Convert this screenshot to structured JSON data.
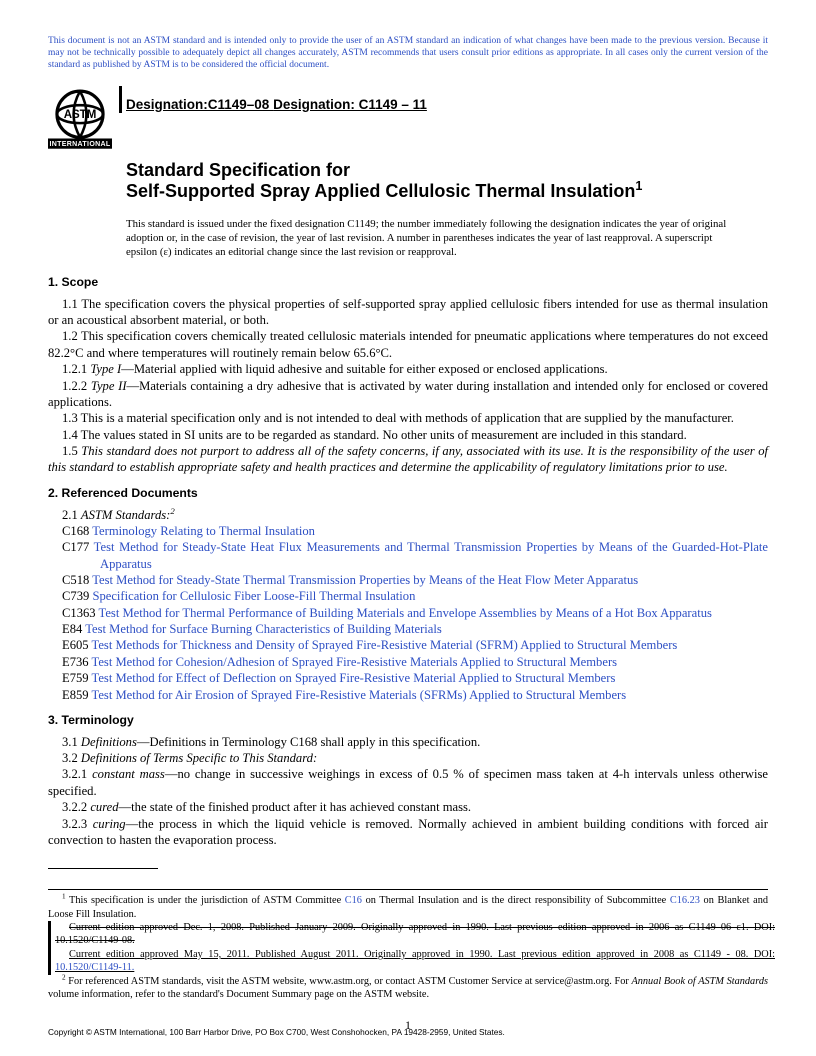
{
  "notice": "This document is not an ASTM standard and is intended only to provide the user of an ASTM standard an indication of what changes have been made to the previous version. Because it may not be technically possible to adequately depict all changes accurately, ASTM recommends that users consult prior editions as appropriate. In all cases only the current version of the standard as published by ASTM is to be considered the official document.",
  "logo_text_top": "INTERNATIONAL",
  "designation_old": "Designation:C1149–08 ",
  "designation_new": "Designation: C1149 – 11",
  "title_line1": "Standard Specification for",
  "title_line2": "Self-Supported Spray Applied Cellulosic Thermal Insulation",
  "title_super": "1",
  "issue_note": "This standard is issued under the fixed designation C1149; the number immediately following the designation indicates the year of original adoption or, in the case of revision, the year of last revision. A number in parentheses indicates the year of last reapproval. A superscript epsilon (ε) indicates an editorial change since the last revision or reapproval.",
  "sec1_head": "1. Scope",
  "sec1_1": "1.1 The specification covers the physical properties of self-supported spray applied cellulosic fibers intended for use as thermal insulation or an acoustical absorbent material, or both.",
  "sec1_2": "1.2 This specification covers chemically treated cellulosic materials intended for pneumatic applications where temperatures do not exceed 82.2°C and where temperatures will routinely remain below 65.6°C.",
  "sec1_2_1_lead": "1.2.1 ",
  "sec1_2_1_term": "Type I",
  "sec1_2_1_body": "—Material applied with liquid adhesive and suitable for either exposed or enclosed applications.",
  "sec1_2_2_lead": "1.2.2 ",
  "sec1_2_2_term": "Type II",
  "sec1_2_2_body": "—Materials containing a dry adhesive that is activated by water during installation and intended only for enclosed or covered applications.",
  "sec1_3": "1.3 This is a material specification only and is not intended to deal with methods of application that are supplied by the manufacturer.",
  "sec1_4": "1.4 The values stated in SI units are to be regarded as standard. No other units of measurement are included in this standard.",
  "sec1_5_lead": "1.5 ",
  "sec1_5_body": "This standard does not purport to address all of the safety concerns, if any, associated with its use. It is the responsibility of the user of this standard to establish appropriate safety and health practices and determine the applicability of regulatory limitations prior to use.",
  "sec2_head": "2. Referenced Documents",
  "sec2_1_lead": "2.1 ",
  "sec2_1_term": "ASTM Standards:",
  "sec2_1_sup": "2",
  "refs": [
    {
      "code": "C168",
      "title": "Terminology Relating to Thermal Insulation"
    },
    {
      "code": "C177",
      "title": "Test Method for Steady-State Heat Flux Measurements and Thermal Transmission Properties by Means of the Guarded-Hot-Plate Apparatus"
    },
    {
      "code": "C518",
      "title": "Test Method for Steady-State Thermal Transmission Properties by Means of the Heat Flow Meter Apparatus"
    },
    {
      "code": "C739",
      "title": "Specification for Cellulosic Fiber Loose-Fill Thermal Insulation"
    },
    {
      "code": "C1363",
      "title": "Test Method for Thermal Performance of Building Materials and Envelope Assemblies by Means of a Hot Box Apparatus"
    },
    {
      "code": "E84",
      "title": "Test Method for Surface Burning Characteristics of Building Materials"
    },
    {
      "code": "E605",
      "title": "Test Methods for Thickness and Density of Sprayed Fire-Resistive Material (SFRM) Applied to Structural Members"
    },
    {
      "code": "E736",
      "title": "Test Method for Cohesion/Adhesion of Sprayed Fire-Resistive Materials Applied to Structural Members"
    },
    {
      "code": "E759",
      "title": "Test Method for Effect of Deflection on Sprayed Fire-Resistive Material Applied to Structural Members"
    },
    {
      "code": "E859",
      "title": "Test Method for Air Erosion of Sprayed Fire-Resistive Materials (SFRMs) Applied to Structural Members"
    }
  ],
  "sec3_head": "3. Terminology",
  "sec3_1_lead": "3.1 ",
  "sec3_1_term": "Definitions",
  "sec3_1_body": "—Definitions in Terminology C168 shall apply in this specification.",
  "sec3_2_lead": "3.2 ",
  "sec3_2_term": "Definitions of Terms Specific to This Standard:",
  "sec3_2_1_lead": "3.2.1 ",
  "sec3_2_1_term": "constant mass",
  "sec3_2_1_body": "—no change in successive weighings in excess of 0.5 % of specimen mass taken at 4-h intervals unless otherwise specified.",
  "sec3_2_2_lead": "3.2.2 ",
  "sec3_2_2_term": "cured",
  "sec3_2_2_body": "—the state of the finished product after it has achieved constant mass.",
  "sec3_2_3_lead": "3.2.3 ",
  "sec3_2_3_term": "curing",
  "sec3_2_3_body": "—the process in which the liquid vehicle is removed. Normally achieved in ambient building conditions with forced air convection to hasten the evaporation process.",
  "fn1_a": " This specification is under the jurisdiction of ASTM Committee ",
  "fn1_link1": "C16",
  "fn1_b": " on Thermal Insulation and is the direct responsibility of Subcommittee ",
  "fn1_link2": "C16.23",
  "fn1_c": " on Blanket and Loose Fill Insulation.",
  "fn1_old": "Current edition approved Dec. 1, 2008. Published January 2009. Originally approved in 1990. Last previous edition approved in 2006 as C1149–06 ε1. DOI: 10.1520/C1149-08.",
  "fn1_new_a": "Current edition approved May 15, 2011. Published August 2011. Originally approved in 1990. Last previous edition approved in 2008 as C1149 - 08. DOI: ",
  "fn1_new_link": "10.1520/C1149-11.",
  "fn2_a": " For referenced ASTM standards, visit the ASTM website, www.astm.org, or contact ASTM Customer Service at service@astm.org. For ",
  "fn2_ital": "Annual Book of ASTM Standards",
  "fn2_b": " volume information, refer to the standard's Document Summary page on the ASTM website.",
  "copyright": "Copyright © ASTM International, 100 Barr Harbor Drive, PO Box C700, West Conshohocken, PA 19428-2959, United States.",
  "pagenum": "1"
}
